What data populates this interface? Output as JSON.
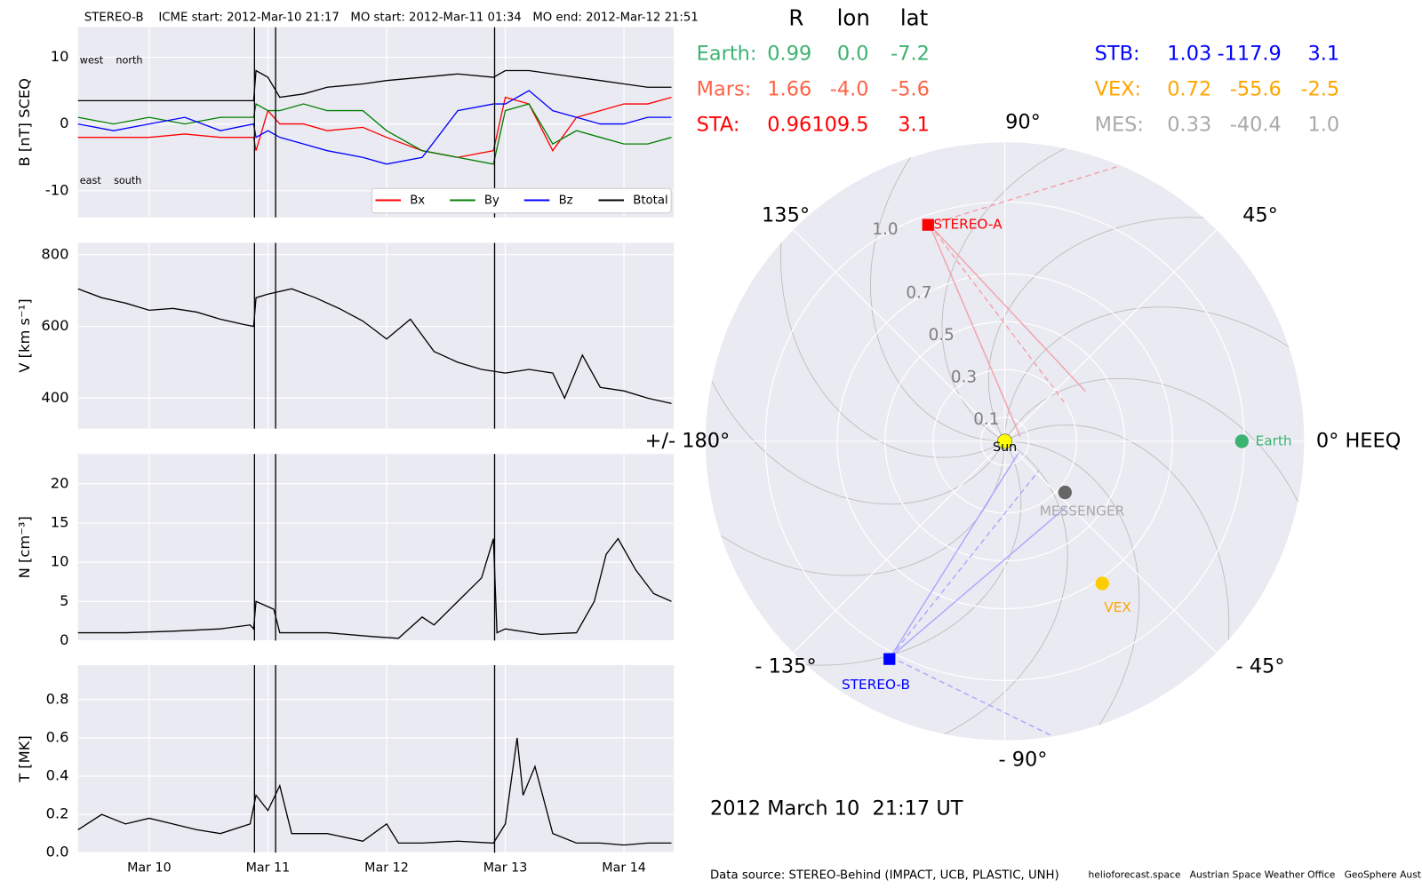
{
  "chart_data": [
    {
      "type": "line",
      "title": "STEREO-B    ICME start: 2012-Mar-10 21:17   MO start: 2012-Mar-11 01:34   MO end: 2012-Mar-12 21:51",
      "ylabel": "B [nT] SCEQ",
      "annotations": [
        "west    north",
        "east    south"
      ],
      "legend": "lower right",
      "xlim": [
        9.4,
        14.42
      ],
      "ylim": [
        -14,
        14.5
      ],
      "yticks": [
        -10,
        0,
        10
      ],
      "grid": true,
      "events": [
        10.887,
        11.065,
        12.91
      ],
      "x": [
        9.4,
        9.7,
        10.0,
        10.3,
        10.6,
        10.88,
        10.9,
        11.0,
        11.1,
        11.3,
        11.5,
        11.8,
        12.0,
        12.3,
        12.6,
        12.9,
        13.0,
        13.2,
        13.4,
        13.6,
        13.8,
        14.0,
        14.2,
        14.4
      ],
      "series": [
        {
          "name": "Bx",
          "color": "#ff0000",
          "values": [
            -2,
            -2,
            -2,
            -1.5,
            -2,
            -2,
            -4,
            2,
            0,
            0,
            -1,
            -0.5,
            -2,
            -4,
            -5,
            -4,
            4,
            3,
            -4,
            1,
            2,
            3,
            3,
            4
          ]
        },
        {
          "name": "By",
          "color": "#008000",
          "values": [
            1,
            0,
            1,
            0,
            1,
            1,
            3,
            2,
            2,
            3,
            2,
            2,
            -1,
            -4,
            -5,
            -6,
            2,
            3,
            -3,
            -1,
            -2,
            -3,
            -3,
            -2
          ]
        },
        {
          "name": "Bz",
          "color": "#0000ff",
          "values": [
            0,
            -1,
            0,
            1,
            -1,
            0,
            -2,
            -1,
            -2,
            -3,
            -4,
            -5,
            -6,
            -5,
            2,
            3,
            3,
            5,
            2,
            1,
            0,
            0,
            1,
            1
          ]
        },
        {
          "name": "Btotal",
          "color": "#000000",
          "values": [
            3.5,
            3.5,
            3.5,
            3.5,
            3.5,
            3.5,
            8,
            7,
            4,
            4.5,
            5.5,
            6,
            6.5,
            7,
            7.5,
            7,
            8,
            8,
            7.5,
            7,
            6.5,
            6,
            5.5,
            5.5
          ]
        }
      ]
    },
    {
      "type": "line",
      "ylabel": "V [km s⁻¹]",
      "xlim": [
        9.4,
        14.42
      ],
      "ylim": [
        315,
        833
      ],
      "yticks": [
        400,
        600,
        800
      ],
      "grid": true,
      "color": "#000000",
      "x": [
        9.4,
        9.6,
        9.8,
        10.0,
        10.2,
        10.4,
        10.6,
        10.8,
        10.88,
        10.9,
        11.0,
        11.2,
        11.4,
        11.6,
        11.8,
        12.0,
        12.2,
        12.4,
        12.6,
        12.8,
        13.0,
        13.2,
        13.4,
        13.5,
        13.65,
        13.8,
        14.0,
        14.2,
        14.4
      ],
      "values": [
        705,
        680,
        665,
        645,
        650,
        640,
        620,
        605,
        600,
        680,
        690,
        705,
        680,
        650,
        615,
        565,
        620,
        530,
        500,
        480,
        470,
        480,
        470,
        400,
        520,
        430,
        420,
        400,
        385
      ]
    },
    {
      "type": "line",
      "ylabel": "N [cm⁻³]",
      "xlim": [
        9.4,
        14.42
      ],
      "ylim": [
        0,
        23.8
      ],
      "yticks": [
        0,
        5,
        10,
        15,
        20
      ],
      "grid": true,
      "color": "#000000",
      "x": [
        9.4,
        9.8,
        10.2,
        10.6,
        10.85,
        10.88,
        10.9,
        11.05,
        11.1,
        11.5,
        11.9,
        12.1,
        12.3,
        12.4,
        12.6,
        12.8,
        12.9,
        12.93,
        13.0,
        13.3,
        13.6,
        13.75,
        13.85,
        13.95,
        14.1,
        14.25,
        14.4
      ],
      "values": [
        1,
        1,
        1.2,
        1.5,
        2,
        1.5,
        5,
        4,
        1,
        1,
        0.5,
        0.3,
        3,
        2,
        5,
        8,
        13,
        1,
        1.5,
        0.8,
        1,
        5,
        11,
        13,
        9,
        6,
        5
      ]
    },
    {
      "type": "line",
      "ylabel": "T [MK]",
      "xlim": [
        9.4,
        14.42
      ],
      "ylim": [
        0,
        0.98
      ],
      "yticks": [
        {
          "value": 0,
          "label": "0.0"
        },
        0.2,
        0.4,
        0.6,
        0.8
      ],
      "grid": true,
      "color": "#000000",
      "xticks": [
        {
          "value": 10,
          "label": "Mar 10"
        },
        {
          "value": 11,
          "label": "Mar 11"
        },
        {
          "value": 12,
          "label": "Mar 12"
        },
        {
          "value": 13,
          "label": "Mar 13"
        },
        {
          "value": 14,
          "label": "Mar 14"
        }
      ],
      "x": [
        9.4,
        9.6,
        9.8,
        10.0,
        10.2,
        10.4,
        10.6,
        10.85,
        10.9,
        11.0,
        11.1,
        11.2,
        11.5,
        11.8,
        12.0,
        12.1,
        12.3,
        12.6,
        12.9,
        13.0,
        13.1,
        13.15,
        13.25,
        13.4,
        13.6,
        13.8,
        14.0,
        14.2,
        14.4
      ],
      "values": [
        0.12,
        0.2,
        0.15,
        0.18,
        0.15,
        0.12,
        0.1,
        0.15,
        0.3,
        0.22,
        0.35,
        0.1,
        0.1,
        0.06,
        0.15,
        0.05,
        0.05,
        0.06,
        0.05,
        0.15,
        0.6,
        0.3,
        0.45,
        0.1,
        0.05,
        0.05,
        0.04,
        0.05,
        0.05
      ]
    },
    {
      "type": "polar",
      "rlim": [
        0,
        1.25
      ],
      "rticks": [
        0.1,
        0.3,
        0.5,
        0.7,
        {
          "value": 1,
          "label": "1.0"
        }
      ],
      "thetaticks": [
        {
          "value": 0,
          "label": "0° HEEQ"
        },
        {
          "value": 45,
          "label": "45°"
        },
        {
          "value": 90,
          "label": "90°"
        },
        {
          "value": 135,
          "label": "135°"
        },
        {
          "value": 180,
          "label": "+/- 180°"
        },
        {
          "value": -135,
          "label": "- 135°"
        },
        {
          "value": -90,
          "label": "- 90°"
        },
        {
          "value": -45,
          "label": "- 45°"
        }
      ],
      "sun_label": "Sun",
      "sun_color": "#ffff00",
      "columns": [
        "R",
        "lon",
        "lat"
      ],
      "rows": [
        {
          "name": "Earth:",
          "color": "#3cb371",
          "label": "Earth",
          "marker": "circle",
          "r": 0.99,
          "lon": {
            "value": 0,
            "label": "0.0"
          },
          "lat": -7.2
        },
        {
          "name": "Mars:",
          "color": "#ff6347",
          "r": 1.66,
          "lon": {
            "value": -4,
            "label": "-4.0"
          },
          "lat": -5.6
        },
        {
          "name": "STA:",
          "color": "#ff0000",
          "label": "STEREO-A",
          "marker": "square",
          "r": 0.96,
          "lon": 109.5,
          "lat": 3.1
        },
        {
          "name": "STB:",
          "color": "#0000ff",
          "label": "STEREO-B",
          "marker": "square",
          "r": 1.03,
          "lon": -117.9,
          "lat": 3.1
        },
        {
          "name": "VEX:",
          "color": "#ffa500",
          "marker_color": "#ffcc00",
          "label": "VEX",
          "marker": "circle",
          "r": 0.72,
          "lon": -55.6,
          "lat": -2.5
        },
        {
          "name": "MES:",
          "color": "#a9a9a9",
          "marker_color": "#666666",
          "label": "MESSENGER",
          "marker": "circle",
          "r": 0.33,
          "lon": -40.4,
          "lat": {
            "value": 1,
            "label": "1.0"
          }
        }
      ],
      "time": "2012 March 10  21:17 UT",
      "source": "Data source: STEREO-Behind (IMPACT, UCB, PLASTIC, UNH)",
      "credits": "helioforecast.space   Austrian Space Weather Office   GeoSphere Austria"
    }
  ]
}
